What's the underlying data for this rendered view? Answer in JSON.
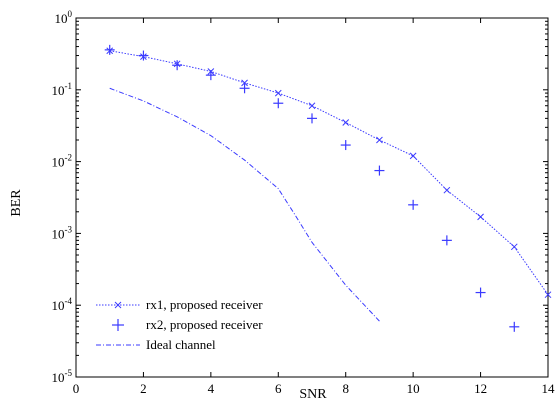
{
  "chart_data": {
    "type": "line",
    "title": "",
    "xlabel": "SNR",
    "ylabel": "BER",
    "xlim": [
      0,
      14
    ],
    "ylim": [
      1e-05,
      1
    ],
    "yscale": "log",
    "grid": false,
    "legend_position": "bottom-left",
    "x_ticks": [
      0,
      2,
      4,
      6,
      8,
      10,
      12,
      14
    ],
    "x_tick_labels": [
      "0",
      "2",
      "4",
      "6",
      "8",
      "10",
      "12",
      "14"
    ],
    "y_ticks": [
      {
        "value": 1,
        "base": "10",
        "exp": "0"
      },
      {
        "value": 0.1,
        "base": "10",
        "exp": "-1"
      },
      {
        "value": 0.01,
        "base": "10",
        "exp": "-2"
      },
      {
        "value": 0.001,
        "base": "10",
        "exp": "-3"
      },
      {
        "value": 0.0001,
        "base": "10",
        "exp": "-4"
      },
      {
        "value": 1e-05,
        "base": "10",
        "exp": "-5"
      }
    ],
    "series": [
      {
        "name": "rx1, proposed receiver",
        "color": "#3a3aff",
        "style": "dotted-line-x-marker",
        "x": [
          1,
          2,
          3,
          4,
          5,
          6,
          7,
          8,
          9,
          10,
          11,
          12,
          13,
          14
        ],
        "y": [
          0.35,
          0.29,
          0.23,
          0.18,
          0.125,
          0.09,
          0.06,
          0.035,
          0.02,
          0.012,
          0.004,
          0.0017,
          0.00065,
          0.00014
        ]
      },
      {
        "name": "rx2, proposed receiver",
        "color": "#3a3aff",
        "style": "plus-marker",
        "x": [
          1,
          2,
          3,
          4,
          5,
          6,
          7,
          8,
          9,
          10,
          11,
          12,
          13
        ],
        "y": [
          0.36,
          0.3,
          0.22,
          0.16,
          0.105,
          0.065,
          0.04,
          0.017,
          0.0075,
          0.0025,
          0.0008,
          0.00015,
          5e-05
        ]
      },
      {
        "name": "Ideal channel",
        "color": "#3a3aff",
        "style": "dashdot-line",
        "x": [
          1,
          2,
          3,
          4,
          5,
          6,
          6.5,
          7,
          8,
          9
        ],
        "y": [
          0.105,
          0.07,
          0.042,
          0.023,
          0.0105,
          0.0042,
          0.0018,
          0.00075,
          0.00019,
          6e-05
        ]
      }
    ]
  }
}
